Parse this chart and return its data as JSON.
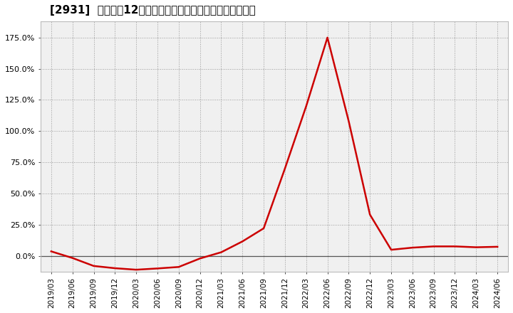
{
  "title": "[2931]  売上高の12か月移動合計の対前年同期増減率の推移",
  "line_color": "#cc0000",
  "background_color": "#ffffff",
  "plot_bg_color": "#f0f0f0",
  "grid_color": "#999999",
  "zero_line_color": "#555555",
  "yticks": [
    0.0,
    0.25,
    0.5,
    0.75,
    1.0,
    1.25,
    1.5,
    1.75
  ],
  "ylim_min": -0.13,
  "ylim_max": 1.88,
  "dates": [
    "2019/03",
    "2019/06",
    "2019/09",
    "2019/12",
    "2020/03",
    "2020/06",
    "2020/09",
    "2020/12",
    "2021/03",
    "2021/06",
    "2021/09",
    "2021/12",
    "2022/03",
    "2022/06",
    "2022/09",
    "2022/12",
    "2023/03",
    "2023/06",
    "2023/09",
    "2023/12",
    "2024/03",
    "2024/06"
  ],
  "values": [
    0.035,
    -0.018,
    -0.082,
    -0.1,
    -0.112,
    -0.102,
    -0.09,
    -0.022,
    0.028,
    0.115,
    0.22,
    0.7,
    1.2,
    1.75,
    1.08,
    0.33,
    0.048,
    0.065,
    0.075,
    0.075,
    0.068,
    0.072
  ],
  "title_fontsize": 11,
  "tick_fontsize": 8,
  "xtick_fontsize": 7.5,
  "linewidth": 1.8
}
